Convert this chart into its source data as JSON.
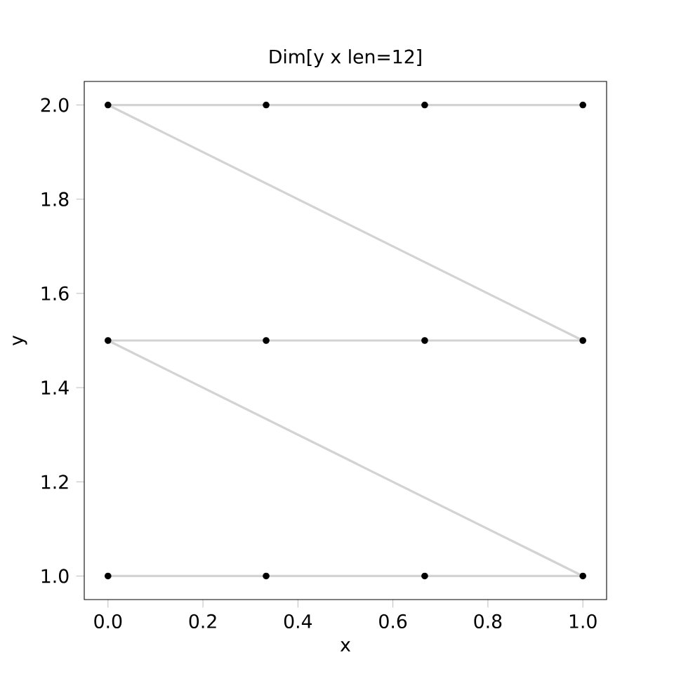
{
  "chart_data": {
    "type": "line",
    "title": "Dim[y x len=12]",
    "xlabel": "x",
    "ylabel": "y",
    "x": [
      0,
      0.333,
      0.667,
      1,
      0,
      0.333,
      0.667,
      1,
      0,
      0.333,
      0.667,
      1
    ],
    "series": [
      {
        "color": "#d3d3d3",
        "marker": "none",
        "values": [
          1,
          1,
          1,
          1,
          1.5,
          1.5,
          1.5,
          1.5,
          2,
          2,
          2,
          2
        ]
      },
      {
        "type": "scatter",
        "color": "#000000",
        "marker": "circle",
        "values": [
          1,
          1,
          1,
          1,
          1.5,
          1.5,
          1.5,
          1.5,
          2,
          2,
          2,
          2
        ]
      }
    ],
    "xlim": [
      -0.05,
      1.05
    ],
    "ylim": [
      0.95,
      2.05
    ],
    "xticks": [
      {
        "value": 0,
        "label": "0.0"
      },
      {
        "value": 0.2,
        "label": "0.2"
      },
      {
        "value": 0.4,
        "label": "0.4"
      },
      {
        "value": 0.6,
        "label": "0.6"
      },
      {
        "value": 0.8,
        "label": "0.8"
      },
      {
        "value": 1,
        "label": "1.0"
      }
    ],
    "yticks": [
      {
        "value": 1,
        "label": "1.0"
      },
      {
        "value": 1.2,
        "label": "1.2"
      },
      {
        "value": 1.4,
        "label": "1.4"
      },
      {
        "value": 1.6,
        "label": "1.6"
      },
      {
        "value": 1.8,
        "label": "1.8"
      },
      {
        "value": 2,
        "label": "2.0"
      }
    ],
    "grid": false
  }
}
